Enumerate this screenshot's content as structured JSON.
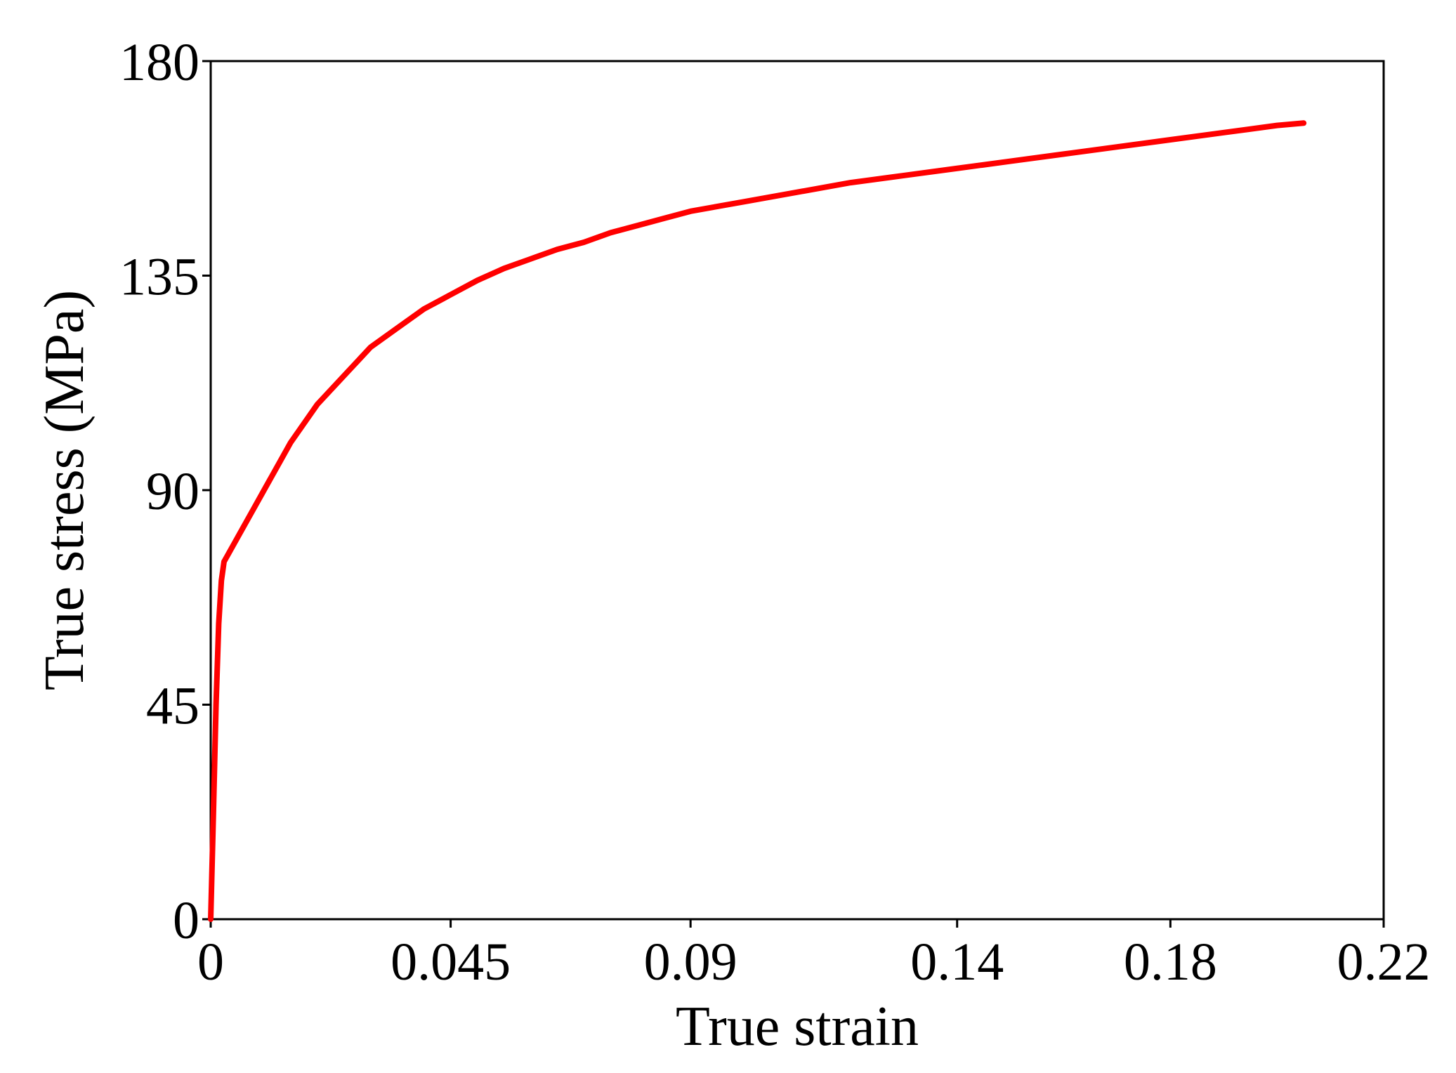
{
  "chart_data": {
    "type": "line",
    "title": "",
    "xlabel": "True strain",
    "ylabel": "True stress (MPa)",
    "xlim": [
      0,
      0.22
    ],
    "ylim": [
      0,
      180
    ],
    "xticks": [
      0,
      0.045,
      0.09,
      0.14,
      0.18,
      0.22
    ],
    "xtick_labels": [
      "0",
      "0.045",
      "0.09",
      "0.14",
      "0.18",
      "0.22"
    ],
    "yticks": [
      0,
      45,
      90,
      135,
      180
    ],
    "ytick_labels": [
      "0",
      "45",
      "90",
      "135",
      "180"
    ],
    "grid": false,
    "legend": "none",
    "line_color": "#ff0000",
    "series": [
      {
        "x": [
          0,
          0.0005,
          0.001,
          0.0015,
          0.002,
          0.0025,
          0.003,
          0.005,
          0.008,
          0.01,
          0.015,
          0.02,
          0.025,
          0.03,
          0.035,
          0.04,
          0.045,
          0.05,
          0.055,
          0.06,
          0.065,
          0.07,
          0.075,
          0.08,
          0.085,
          0.09,
          0.1,
          0.11,
          0.12,
          0.13,
          0.14,
          0.15,
          0.16,
          0.17,
          0.18,
          0.19,
          0.2,
          0.205
        ],
        "y": [
          0,
          22,
          45,
          62,
          71,
          75,
          76,
          80,
          86,
          90,
          100,
          108,
          114,
          120,
          124,
          128,
          131,
          134,
          136.5,
          138.5,
          140.5,
          142,
          144,
          145.5,
          147,
          148.5,
          150.5,
          152.5,
          154.5,
          156,
          157.5,
          159,
          160.5,
          162,
          163.5,
          165,
          166.5,
          167
        ]
      }
    ]
  }
}
